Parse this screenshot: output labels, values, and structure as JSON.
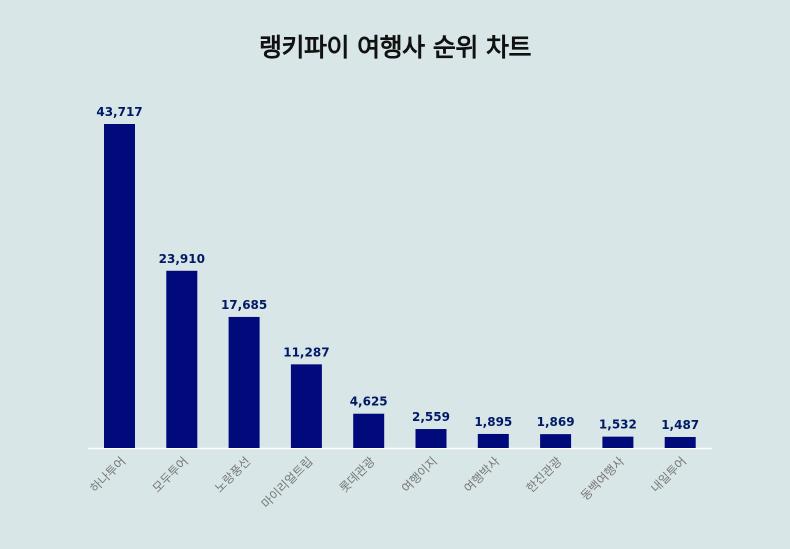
{
  "chart_data": {
    "type": "bar",
    "title": "랭키파이 여행사 순위 차트",
    "categories": [
      "하나투어",
      "모두투어",
      "노랑풍선",
      "마이리얼트립",
      "롯데관광",
      "여행이지",
      "여행박사",
      "한진관광",
      "동백여행사",
      "내일투어"
    ],
    "values": [
      43717,
      23910,
      17685,
      11287,
      4625,
      2559,
      1895,
      1869,
      1532,
      1487
    ],
    "value_labels": [
      "43,717",
      "23,910",
      "17,685",
      "11,287",
      "4,625",
      "2,559",
      "1,895",
      "1,869",
      "1,532",
      "1,487"
    ],
    "xlabel": "",
    "ylabel": "",
    "ylim": [
      0,
      43717
    ],
    "grid": false,
    "legend": "none",
    "colors": {
      "bar": "#000a7a",
      "value_label": "#001a66",
      "tick_label": "#777777",
      "axis": "#ffffff",
      "background": "#d8e6e8"
    }
  }
}
